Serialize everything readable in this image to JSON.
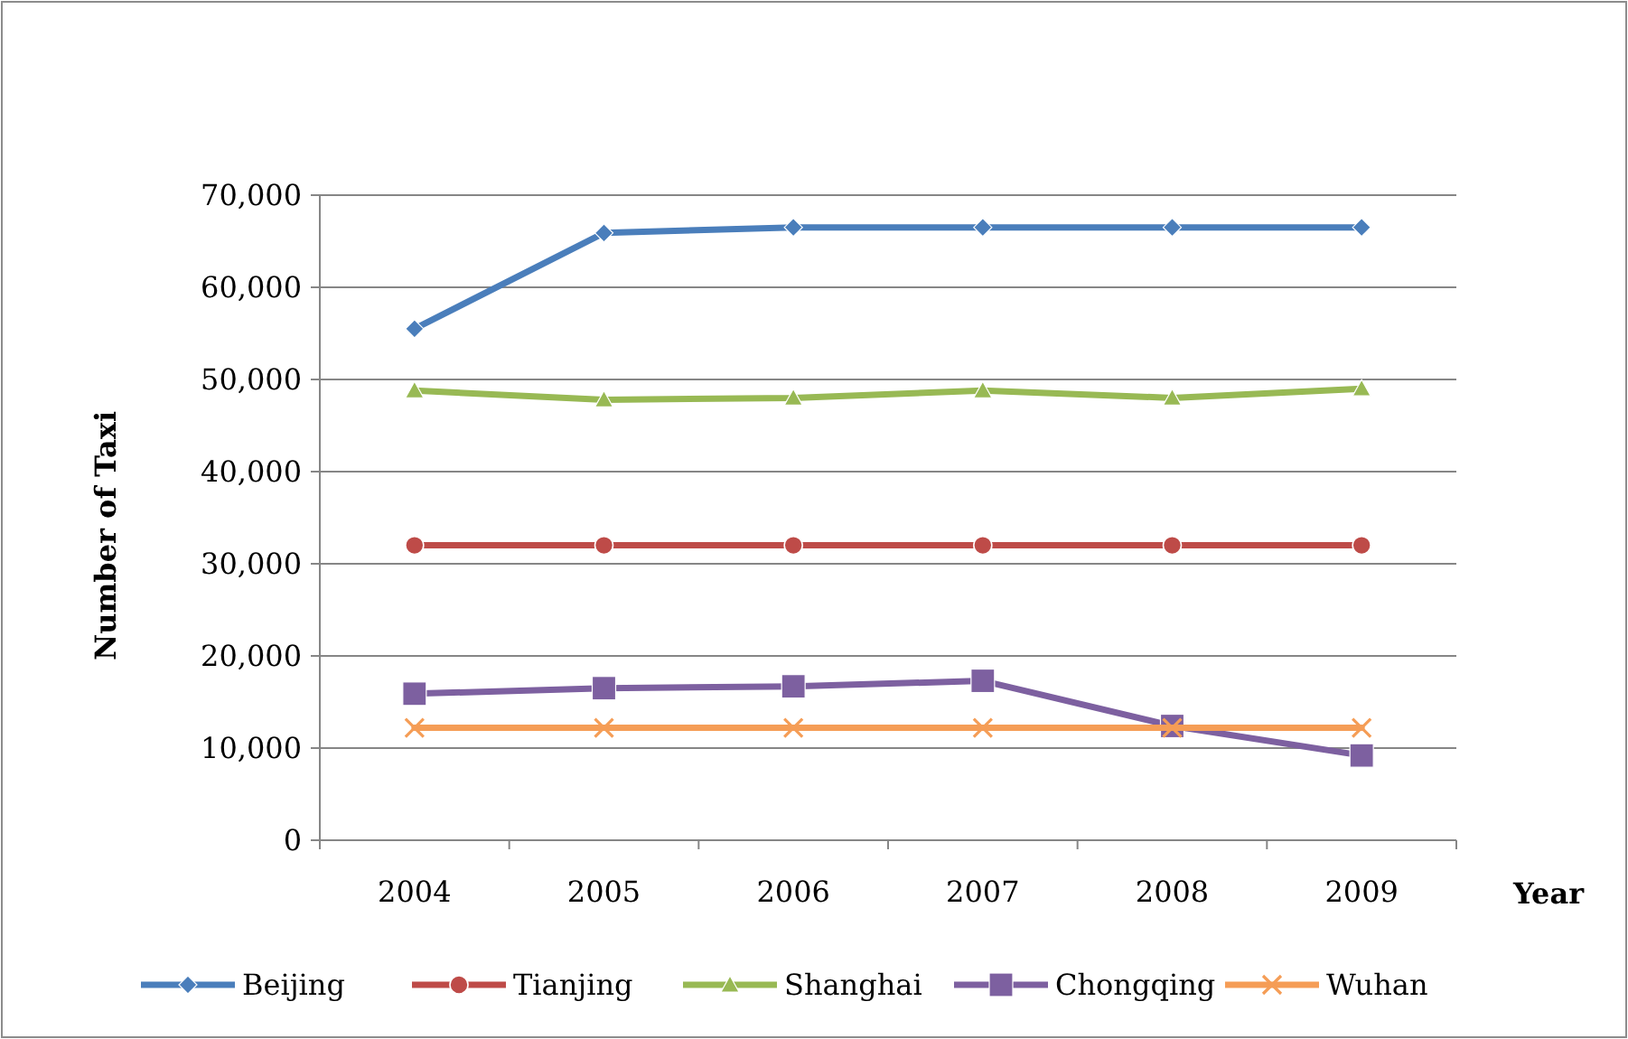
{
  "chart_data": {
    "type": "line",
    "xlabel": "Year",
    "ylabel": "Number of Taxi",
    "categories": [
      "2004",
      "2005",
      "2006",
      "2007",
      "2008",
      "2009"
    ],
    "series": [
      {
        "name": "Beijing",
        "color": "#4a7ebb",
        "marker": "diamond",
        "values": [
          55500,
          65900,
          66500,
          66500,
          66500,
          66500
        ]
      },
      {
        "name": "Tianjing",
        "color": "#be4b48",
        "marker": "circle",
        "values": [
          32000,
          32000,
          32000,
          32000,
          32000,
          32000
        ]
      },
      {
        "name": "Shanghai",
        "color": "#98b954",
        "marker": "triangle",
        "values": [
          48800,
          47800,
          48000,
          48800,
          48000,
          49000
        ]
      },
      {
        "name": "Chongqing",
        "color": "#7d60a0",
        "marker": "square",
        "values": [
          15900,
          16500,
          16700,
          17300,
          12400,
          9200
        ]
      },
      {
        "name": "Wuhan",
        "color": "#f59d56",
        "marker": "cross",
        "values": [
          12200,
          12200,
          12200,
          12200,
          12200,
          12200
        ]
      }
    ],
    "ylim": [
      0,
      70000
    ],
    "yticks": [
      {
        "value": 0,
        "label": "0"
      },
      {
        "value": 10000,
        "label": "10,000"
      },
      {
        "value": 20000,
        "label": "20,000"
      },
      {
        "value": 30000,
        "label": "30,000"
      },
      {
        "value": 40000,
        "label": "40,000"
      },
      {
        "value": 50000,
        "label": "50,000"
      },
      {
        "value": 60000,
        "label": "60,000"
      },
      {
        "value": 70000,
        "label": "70,000"
      }
    ],
    "grid": "y",
    "legend": "bottom"
  }
}
